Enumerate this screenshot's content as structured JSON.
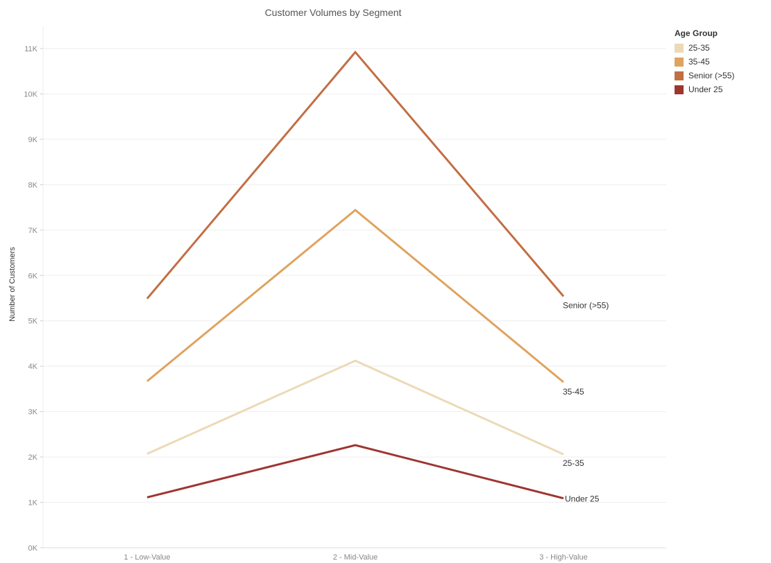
{
  "chart_data": {
    "type": "line",
    "title": "Customer Volumes by Segment",
    "xlabel": "",
    "ylabel": "Number of Customers",
    "categories": [
      "1 - Low-Value",
      "2 - Mid-Value",
      "3 - High-Value"
    ],
    "ylim": [
      0,
      11500
    ],
    "yticks": [
      0,
      1000,
      2000,
      3000,
      4000,
      5000,
      6000,
      7000,
      8000,
      9000,
      10000,
      11000
    ],
    "ytick_labels": [
      "0K",
      "1K",
      "2K",
      "3K",
      "4K",
      "5K",
      "6K",
      "7K",
      "8K",
      "9K",
      "10K",
      "11K"
    ],
    "grid": true,
    "legend_title": "Age Group",
    "legend_position": "top-right",
    "series": [
      {
        "name": "25-35",
        "color": "#EDD9B7",
        "values": [
          2070,
          4120,
          2060
        ],
        "end_label": "25-35"
      },
      {
        "name": "35-45",
        "color": "#DFA35E",
        "values": [
          3670,
          7440,
          3650
        ],
        "end_label": "35-45"
      },
      {
        "name": "Senior (>55)",
        "color": "#C26E43",
        "values": [
          5490,
          10920,
          5540
        ],
        "end_label": "Senior (>55)"
      },
      {
        "name": "Under 25",
        "color": "#9E3531",
        "values": [
          1110,
          2260,
          1090
        ],
        "end_label": "Under 25"
      }
    ]
  }
}
